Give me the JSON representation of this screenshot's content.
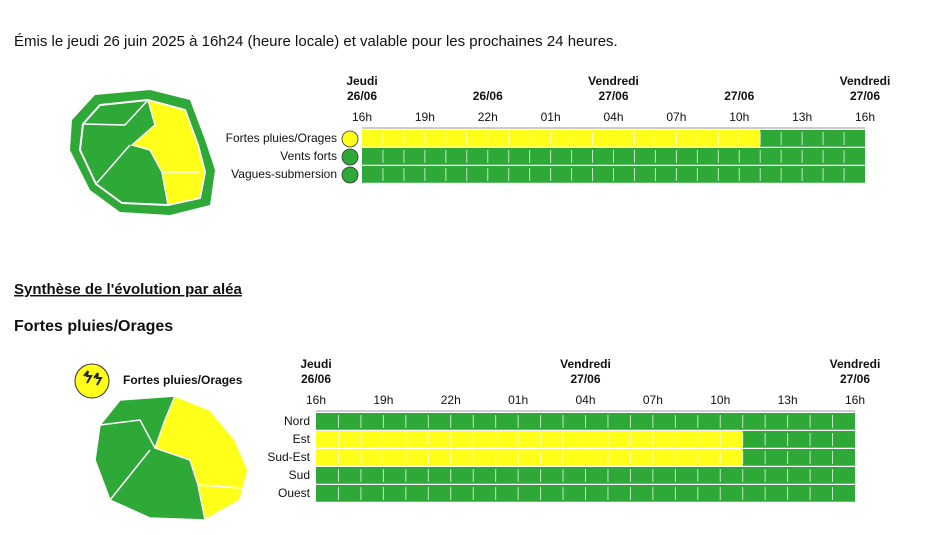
{
  "header": {
    "text": "Émis le jeudi 26 juin 2025 à 16h24 (heure locale) et valable pour les prochaines 24 heures."
  },
  "overview": {
    "days": [
      {
        "weekday": "Jeudi",
        "date": "26/06"
      },
      null,
      {
        "date": "26/06"
      },
      null,
      {
        "weekday": "Vendredi",
        "date": "27/06"
      },
      null,
      {
        "date": "27/06"
      },
      null,
      {
        "weekday": "Vendredi",
        "date": "27/06"
      }
    ],
    "hours": [
      "16h",
      "19h",
      "22h",
      "01h",
      "04h",
      "07h",
      "10h",
      "13h",
      "16h"
    ],
    "rows": [
      {
        "label": "Fortes pluies/Orages",
        "icon_color": "#ffff1a",
        "segments": [
          {
            "color": "#ffff1a",
            "hours": 19
          },
          {
            "color": "#2ea836",
            "hours": 5
          }
        ]
      },
      {
        "label": "Vents forts",
        "icon_color": "#2ea836",
        "segments": [
          {
            "color": "#2ea836",
            "hours": 24
          }
        ]
      },
      {
        "label": "Vagues-submersion",
        "icon_color": "#2ea836",
        "segments": [
          {
            "color": "#2ea836",
            "hours": 24
          }
        ]
      }
    ]
  },
  "section_title": "Synthèse de l'évolution par aléa",
  "hazard": {
    "title": "Fortes pluies/Orages",
    "legend": "Fortes pluies/Orages",
    "days": [
      {
        "weekday": "Jeudi",
        "date": "26/06"
      },
      null,
      null,
      null,
      {
        "weekday": "Vendredi",
        "date": "27/06"
      },
      null,
      null,
      null,
      {
        "weekday": "Vendredi",
        "date": "27/06"
      }
    ],
    "hours": [
      "16h",
      "19h",
      "22h",
      "01h",
      "04h",
      "07h",
      "10h",
      "13h",
      "16h"
    ],
    "rows": [
      {
        "label": "Nord",
        "segments": [
          {
            "color": "#2ea836",
            "hours": 24
          }
        ]
      },
      {
        "label": "Est",
        "segments": [
          {
            "color": "#ffff1a",
            "hours": 19
          },
          {
            "color": "#2ea836",
            "hours": 5
          }
        ]
      },
      {
        "label": "Sud-Est",
        "segments": [
          {
            "color": "#ffff1a",
            "hours": 19
          },
          {
            "color": "#2ea836",
            "hours": 5
          }
        ]
      },
      {
        "label": "Sud",
        "segments": [
          {
            "color": "#2ea836",
            "hours": 24
          }
        ]
      },
      {
        "label": "Ouest",
        "segments": [
          {
            "color": "#2ea836",
            "hours": 24
          }
        ]
      }
    ]
  }
}
